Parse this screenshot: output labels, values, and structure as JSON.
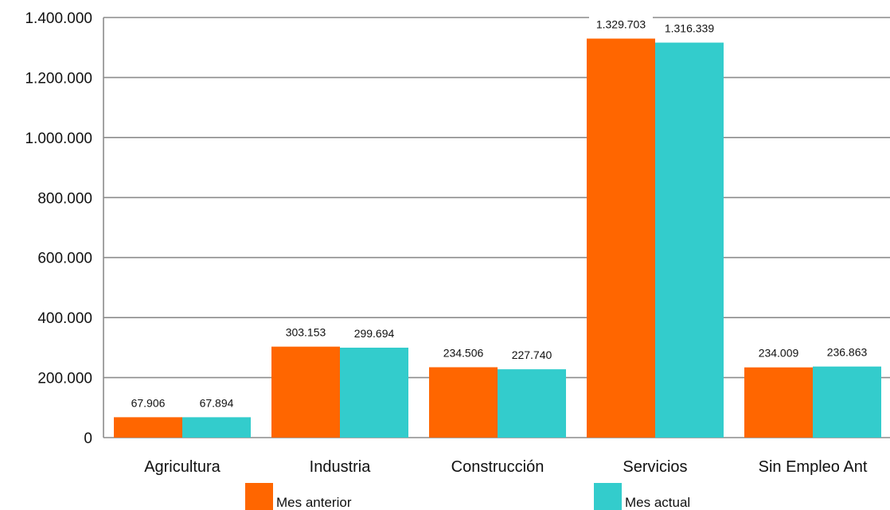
{
  "chart_data": {
    "type": "bar",
    "title": "",
    "xlabel": "",
    "ylabel": "",
    "categories": [
      "Agricultura",
      "Industria",
      "Construcción",
      "Servicios",
      "Sin Empleo Ant"
    ],
    "series": [
      {
        "name": "Mes anterior",
        "color": "#FF6600",
        "values": [
          67906,
          303153,
          234506,
          1329703,
          234009
        ],
        "labels": [
          "67.906",
          "303.153",
          "234.506",
          "1.329.703",
          "234.009"
        ]
      },
      {
        "name": "Mes actual",
        "color": "#33CCCC",
        "values": [
          67894,
          299694,
          227740,
          1316339,
          236863
        ],
        "labels": [
          "67.894",
          "299.694",
          "227.740",
          "1.316.339",
          "236.863"
        ]
      }
    ],
    "ylim": [
      0,
      1400000
    ],
    "yticks": [
      0,
      200000,
      400000,
      600000,
      800000,
      1000000,
      1200000,
      1400000
    ],
    "ytick_labels": [
      "0",
      "200.000",
      "400.000",
      "600.000",
      "800.000",
      "1.000.000",
      "1.200.000",
      "1.400.000"
    ],
    "grid": true,
    "legend_position": "bottom"
  }
}
